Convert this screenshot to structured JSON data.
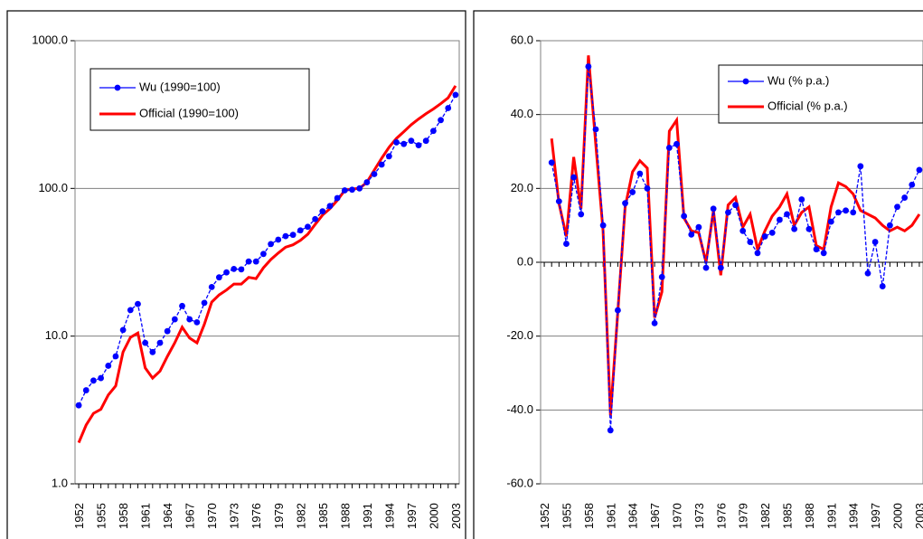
{
  "colors": {
    "wu": "#0000ff",
    "official": "#ff0000"
  },
  "chart_data": [
    {
      "type": "line",
      "yscale": "log",
      "ylim": [
        1,
        1000
      ],
      "yticks": [
        "1.0",
        "10.0",
        "100.0",
        "1000.0"
      ],
      "xticks": [
        "1952",
        "1955",
        "1958",
        "1961",
        "1964",
        "1967",
        "1970",
        "1973",
        "1976",
        "1979",
        "1982",
        "1985",
        "1988",
        "1991",
        "1994",
        "1997",
        "2000",
        "2003"
      ],
      "legend_position": "top-left",
      "x": [
        1952,
        1953,
        1954,
        1955,
        1956,
        1957,
        1958,
        1959,
        1960,
        1961,
        1962,
        1963,
        1964,
        1965,
        1966,
        1967,
        1968,
        1969,
        1970,
        1971,
        1972,
        1973,
        1974,
        1975,
        1976,
        1977,
        1978,
        1979,
        1980,
        1981,
        1982,
        1983,
        1984,
        1985,
        1986,
        1987,
        1988,
        1989,
        1990,
        1991,
        1992,
        1993,
        1994,
        1995,
        1996,
        1997,
        1998,
        1999,
        2000,
        2001,
        2002,
        2003
      ],
      "series": [
        {
          "name": "Wu (1990=100)",
          "color": "#0000ff",
          "marker": "circle",
          "values": [
            3.4,
            4.3,
            5.0,
            5.2,
            6.3,
            7.3,
            11.0,
            15.0,
            16.5,
            9.0,
            7.8,
            9.0,
            10.8,
            13.0,
            16.0,
            13.0,
            12.4,
            16.8,
            21.5,
            25.0,
            27.0,
            28.5,
            28.3,
            32.0,
            32.0,
            36.0,
            42.0,
            45.0,
            47.5,
            48.5,
            52.0,
            55.0,
            62.0,
            70.0,
            76.0,
            86.0,
            97.0,
            98.0,
            100.0,
            110.0,
            125.0,
            145.0,
            165.0,
            205.0,
            200.0,
            210.0,
            196.0,
            210.0,
            245.0,
            290.0,
            350.0,
            430.0
          ]
        },
        {
          "name": "Official (1990=100)",
          "color": "#ff0000",
          "marker": "none",
          "values": [
            1.9,
            2.5,
            3.0,
            3.2,
            4.0,
            4.6,
            7.8,
            9.8,
            10.5,
            6.1,
            5.2,
            5.8,
            7.3,
            9.0,
            11.5,
            9.7,
            9.0,
            12.0,
            17.0,
            19.0,
            20.5,
            22.5,
            22.5,
            25.0,
            24.5,
            29.0,
            33.0,
            36.5,
            40.0,
            41.5,
            44.5,
            49.0,
            57.0,
            66.0,
            73.0,
            83.0,
            97.0,
            99.0,
            100.0,
            110.0,
            133.0,
            160.0,
            190.0,
            218.0,
            242.0,
            270.0,
            295.0,
            320.0,
            345.0,
            375.0,
            410.0,
            495.0
          ]
        }
      ]
    },
    {
      "type": "line",
      "ylim": [
        -60,
        60
      ],
      "yticks": [
        "-60.0",
        "-40.0",
        "-20.0",
        "0.0",
        "20.0",
        "40.0",
        "60.0"
      ],
      "xticks": [
        "1952",
        "1955",
        "1958",
        "1961",
        "1964",
        "1967",
        "1970",
        "1973",
        "1976",
        "1979",
        "1982",
        "1985",
        "1988",
        "1991",
        "1994",
        "1997",
        "2000",
        "2003"
      ],
      "legend_position": "top-right",
      "x": [
        1953,
        1954,
        1955,
        1956,
        1957,
        1958,
        1959,
        1960,
        1961,
        1962,
        1963,
        1964,
        1965,
        1966,
        1967,
        1968,
        1969,
        1970,
        1971,
        1972,
        1973,
        1974,
        1975,
        1976,
        1977,
        1978,
        1979,
        1980,
        1981,
        1982,
        1983,
        1984,
        1985,
        1986,
        1987,
        1988,
        1989,
        1990,
        1991,
        1992,
        1993,
        1994,
        1995,
        1996,
        1997,
        1998,
        1999,
        2000,
        2001,
        2002,
        2003
      ],
      "series": [
        {
          "name": "Wu (% p.a.)",
          "color": "#0000ff",
          "marker": "circle",
          "values": [
            27.0,
            16.5,
            5.0,
            23.0,
            13.0,
            53.0,
            36.0,
            10.0,
            -45.5,
            -13.0,
            16.0,
            19.0,
            24.0,
            20.0,
            -16.5,
            -4.0,
            31.0,
            32.0,
            12.5,
            7.5,
            9.5,
            -1.5,
            14.5,
            -1.5,
            13.5,
            15.5,
            8.5,
            5.5,
            2.5,
            7.0,
            8.0,
            11.5,
            13.0,
            9.0,
            17.0,
            9.0,
            3.5,
            2.5,
            11.0,
            13.5,
            14.0,
            13.5,
            26.0,
            -3.0,
            5.5,
            -6.5,
            10.0,
            15.0,
            17.5,
            21.0,
            25.0
          ]
        },
        {
          "name": "Official (% p.a.)",
          "color": "#ff0000",
          "marker": "none",
          "values": [
            33.5,
            16.0,
            7.0,
            28.5,
            14.5,
            56.0,
            32.0,
            8.5,
            -41.5,
            -13.5,
            15.0,
            24.5,
            27.5,
            25.5,
            -15.0,
            -8.0,
            35.5,
            38.5,
            12.0,
            8.5,
            8.0,
            0.0,
            14.0,
            -3.5,
            15.5,
            17.5,
            9.5,
            13.0,
            3.5,
            8.5,
            12.5,
            15.0,
            18.5,
            10.0,
            13.5,
            15.0,
            4.5,
            3.5,
            15.0,
            21.5,
            20.5,
            18.5,
            14.0,
            13.0,
            12.0,
            10.0,
            8.5,
            9.5,
            8.5,
            10.0,
            13.0
          ]
        }
      ]
    }
  ]
}
